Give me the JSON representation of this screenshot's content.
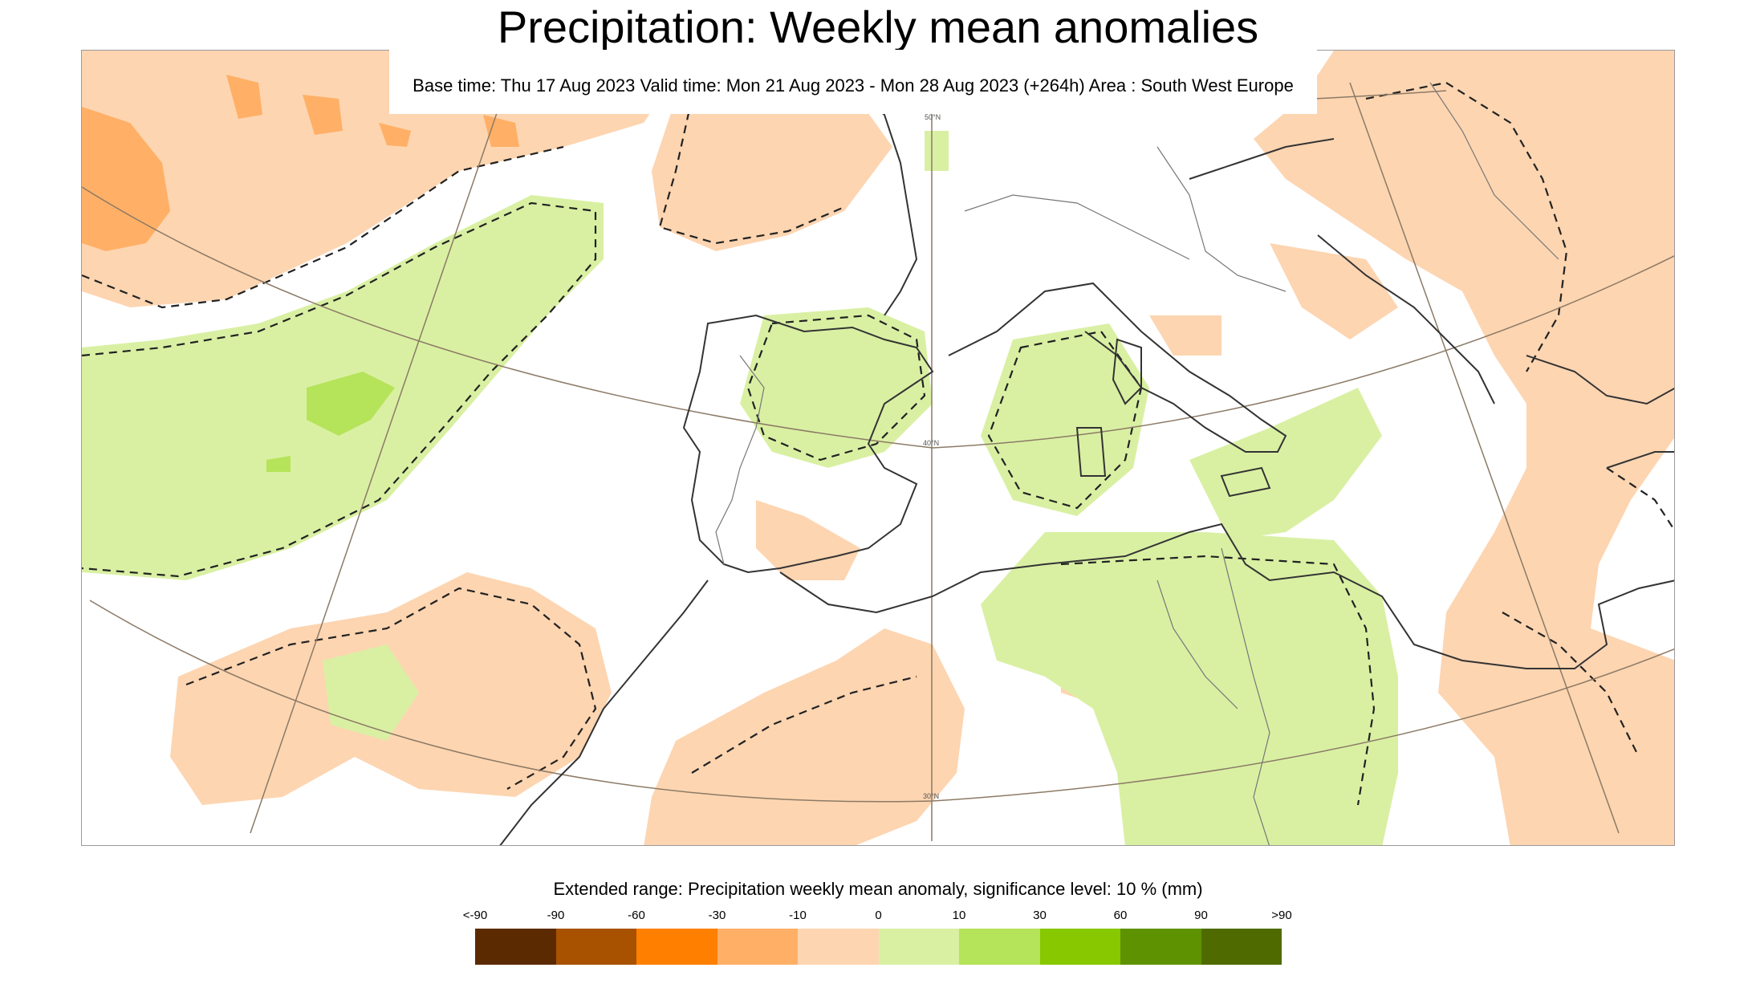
{
  "title": "Precipitation: Weekly mean anomalies",
  "subtitle": "Base time: Thu 17 Aug 2023 Valid time: Mon 21 Aug 2023 - Mon 28 Aug 2023 (+264h) Area : South West Europe",
  "map": {
    "latitude_labels": [
      "50°N",
      "40°N",
      "30°N"
    ]
  },
  "legend": {
    "title": "Extended range: Precipitation weekly mean anomaly, significance level: 10 % (mm)",
    "ticks": [
      "<-90",
      "-90",
      "-60",
      "-30",
      "-10",
      "0",
      "10",
      "30",
      "60",
      "90",
      ">90"
    ],
    "colors": [
      "#5c2a00",
      "#a85200",
      "#ff7f00",
      "#ffb066",
      "#fdd5b1",
      "#d9f0a3",
      "#b5e35a",
      "#87c800",
      "#5f9200",
      "#4f6b00"
    ]
  }
}
